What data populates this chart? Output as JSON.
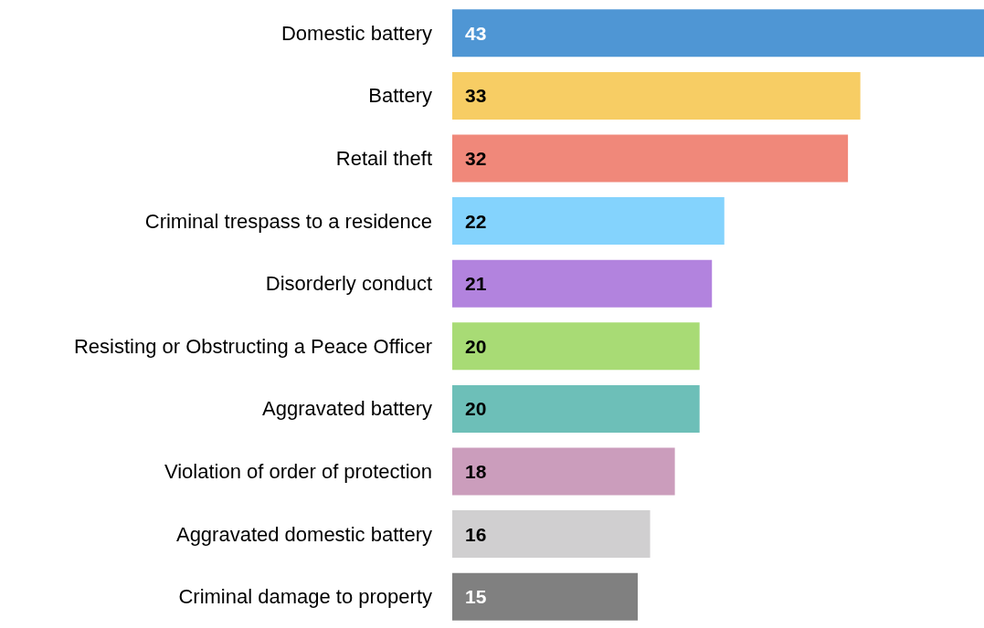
{
  "chart_data": {
    "type": "bar",
    "orientation": "horizontal",
    "data_labels": true,
    "categories": [
      "Domestic battery",
      "Battery",
      "Retail theft",
      "Criminal trespass to a residence",
      "Disorderly conduct",
      "Resisting or Obstructing a Peace Officer",
      "Aggravated battery",
      "Violation of order of protection",
      "Aggravated domestic battery",
      "Criminal damage to property"
    ],
    "values": [
      43,
      33,
      32,
      22,
      21,
      20,
      20,
      18,
      16,
      15
    ],
    "colors": [
      "#4f96d4",
      "#f7cd64",
      "#f0887a",
      "#84d3fd",
      "#b283de",
      "#a8db75",
      "#6dbfb8",
      "#cb9dbc",
      "#d0cfd0",
      "#808080"
    ]
  }
}
